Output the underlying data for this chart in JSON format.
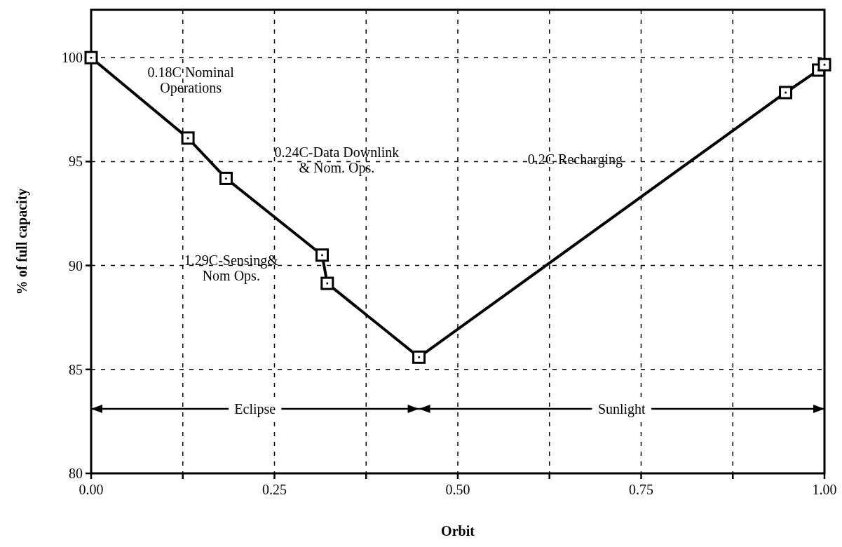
{
  "chart_data": {
    "type": "line",
    "xlabel": "Orbit",
    "ylabel": "% of full capacity",
    "x": [
      0,
      0.132,
      0.184,
      0.315,
      0.322,
      0.447,
      0.947,
      0.992,
      1.0
    ],
    "series": [
      {
        "color": "#000000",
        "values": [
          100,
          96.13,
          94.19,
          90.5,
          89.14,
          85.59,
          98.32,
          99.4,
          99.66
        ]
      }
    ],
    "xlim": [
      0,
      1
    ],
    "ylim": [
      80,
      102.3
    ],
    "xticks": [
      {
        "value": 0,
        "label": "0.00"
      },
      {
        "value": 0.125,
        "label": null
      },
      {
        "value": 0.25,
        "label": "0.25"
      },
      {
        "value": 0.375,
        "label": null
      },
      {
        "value": 0.5,
        "label": "0.50"
      },
      {
        "value": 0.625,
        "label": null
      },
      {
        "value": 0.75,
        "label": "0.75"
      },
      {
        "value": 0.875,
        "label": null
      },
      {
        "value": 1,
        "label": "1.00"
      }
    ],
    "yticks": [
      80,
      85,
      90,
      95,
      100
    ],
    "grid": true,
    "marker": "square",
    "line_style": "solid",
    "annotations": [
      "0.18C Nominal\nOperations",
      "0.24C-Data Downlink\n& Nom. Ops.",
      "1.29C-Sensing&\nNom Ops.",
      "0.2C Recharging",
      "Eclipse",
      "Sunlight"
    ]
  }
}
